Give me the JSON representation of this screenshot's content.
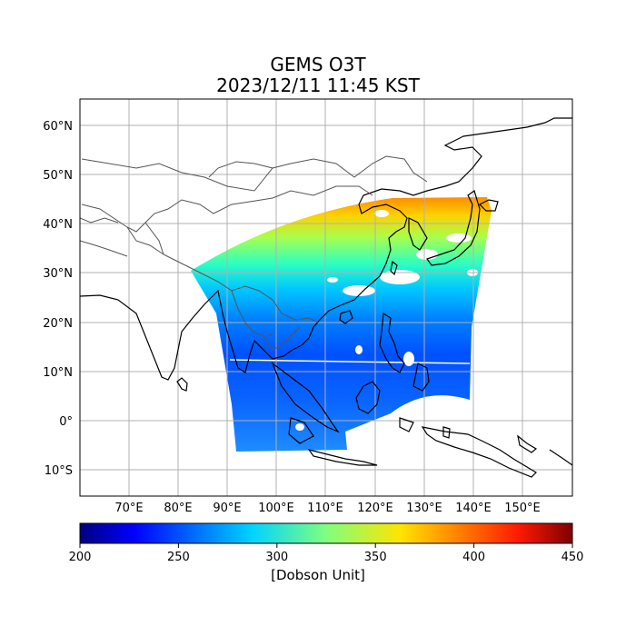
{
  "title": {
    "line1": "GEMS O3T",
    "line2": "2023/12/11 11:45 KST"
  },
  "map": {
    "lon_ticks": [
      "70°E",
      "80°E",
      "90°E",
      "100°E",
      "110°E",
      "120°E",
      "130°E",
      "140°E",
      "150°E"
    ],
    "lat_ticks": [
      "60°N",
      "50°N",
      "40°N",
      "30°N",
      "20°N",
      "10°N",
      "0°",
      "10°S"
    ],
    "grid": true
  },
  "colorbar": {
    "ticks": [
      "200",
      "250",
      "300",
      "350",
      "400",
      "450"
    ],
    "unit": "[Dobson Unit]",
    "colormap": "jet",
    "colors": [
      "#00007f",
      "#0000ff",
      "#007fff",
      "#00ffff",
      "#7fff7f",
      "#ffff00",
      "#ff7f00",
      "#ff0000",
      "#7f0000"
    ]
  }
}
